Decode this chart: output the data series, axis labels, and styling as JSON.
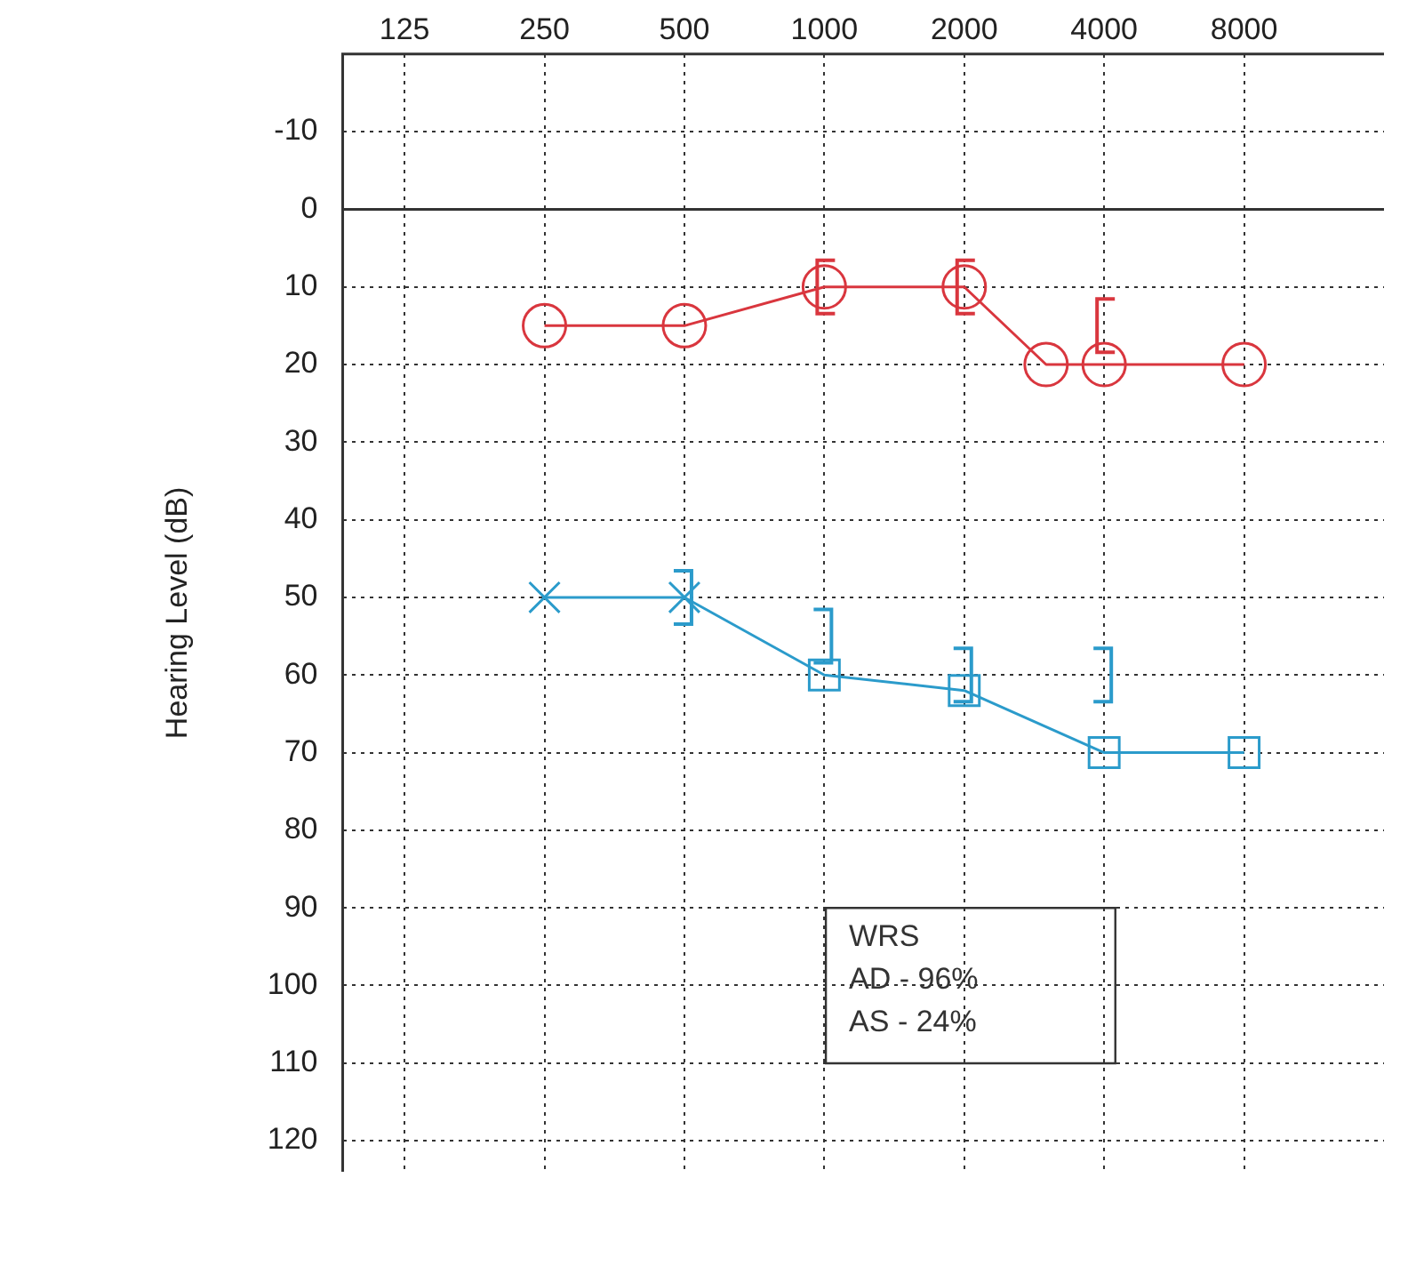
{
  "chart_data": {
    "type": "line",
    "ylabel": "Hearing Level (dB)",
    "log": "x",
    "xlim": [
      92,
      16000
    ],
    "xticks": [
      125,
      250,
      500,
      1000,
      2000,
      4000,
      8000
    ],
    "ylim": [
      124,
      -20
    ],
    "yticks": [
      -10,
      0,
      10,
      20,
      30,
      40,
      50,
      60,
      70,
      80,
      90,
      100,
      110,
      120
    ],
    "grid": true,
    "legend": false,
    "line_style": "solid",
    "series": [
      {
        "color": "#d9363e",
        "marker": "circle",
        "x": [
          250,
          500,
          1000,
          2000,
          3000,
          4000,
          8000
        ],
        "values": [
          15,
          15,
          10,
          10,
          20,
          20,
          20
        ]
      },
      {
        "color": "#2b9bcb",
        "marker": [
          "cross",
          "cross",
          "square",
          "square",
          "square",
          "square"
        ],
        "x": [
          250,
          500,
          1000,
          2000,
          4000,
          8000
        ],
        "values": [
          50,
          50,
          60,
          62,
          70,
          70
        ]
      },
      {
        "type": "scatter",
        "color": "#d9363e",
        "x": [
          1000,
          2000,
          4000
        ],
        "values": [
          10,
          10,
          15
        ]
      },
      {
        "type": "scatter",
        "color": "#2b9bcb",
        "x": [
          500,
          1000,
          2000,
          4000
        ],
        "values": [
          50,
          55,
          60,
          60
        ]
      }
    ],
    "ref_lines": [
      {
        "axis": "y",
        "value": 0,
        "color": "#333333",
        "line_style": "solid"
      }
    ],
    "annotations": [
      "WRS",
      "AD - 96%",
      "AS - 24%"
    ]
  }
}
